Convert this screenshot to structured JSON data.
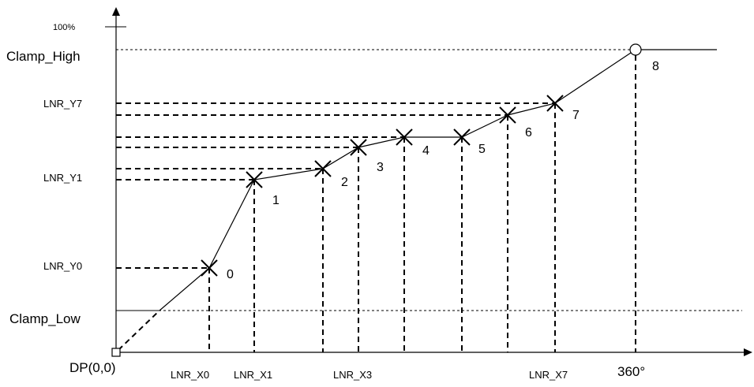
{
  "labels": {
    "y_top": "100%",
    "clamp_high": "Clamp_High",
    "clamp_low": "Clamp_Low",
    "origin": "DP(0,0)",
    "x_end": "360°"
  },
  "y_labels": [
    "LNR_Y7",
    "LNR_Y1",
    "LNR_Y0"
  ],
  "x_labels": [
    "LNR_X0",
    "LNR_X1",
    "LNR_X3",
    "LNR_X7"
  ],
  "points": [
    {
      "id": "0"
    },
    {
      "id": "1"
    },
    {
      "id": "2"
    },
    {
      "id": "3"
    },
    {
      "id": "4"
    },
    {
      "id": "5"
    },
    {
      "id": "6"
    },
    {
      "id": "7"
    },
    {
      "id": "8"
    }
  ]
}
